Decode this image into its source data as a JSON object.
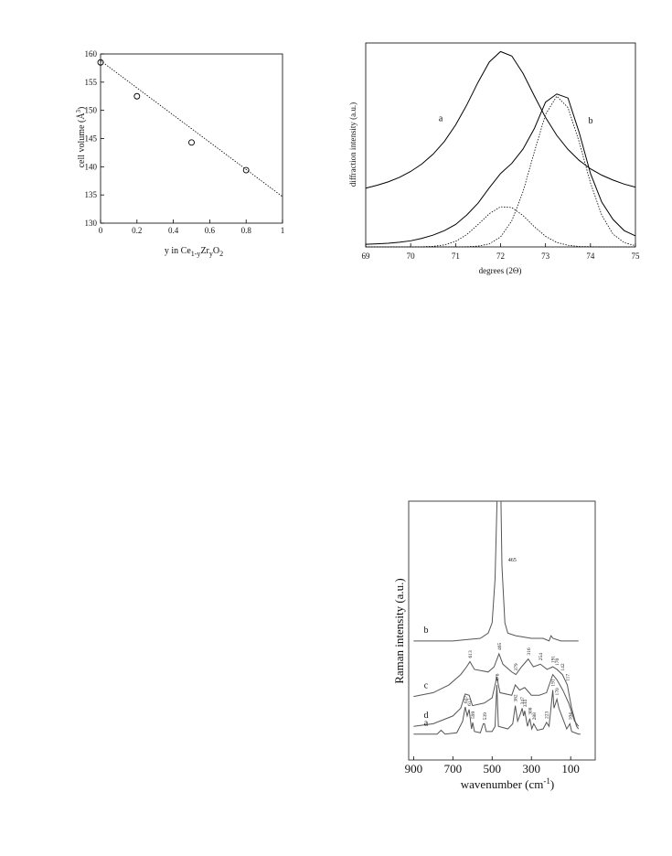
{
  "chart_data": [
    {
      "type": "scatter",
      "color": "#000000",
      "x_label": [
        "y in Ce",
        "1-y",
        "Zr",
        "y",
        "O",
        "2"
      ],
      "y_label": [
        "cell volume (Å",
        "3",
        ")"
      ],
      "x": [
        0,
        0.2,
        0.5,
        0.8
      ],
      "values": [
        158.5,
        152.5,
        144.3,
        139.4
      ],
      "fit": {
        "x": [
          0,
          1
        ],
        "values": [
          158.8,
          134.7
        ]
      },
      "xlim": [
        0,
        1
      ],
      "ylim": [
        130,
        160
      ],
      "xticks": [
        0,
        0.2,
        0.4,
        0.6,
        0.8,
        1
      ],
      "yticks": [
        130,
        135,
        140,
        145,
        150,
        155,
        160
      ]
    },
    {
      "type": "line",
      "color": "#000000",
      "x_label": "degrees (2Θ)",
      "y_label": "diffraction intensity (a.u.)",
      "x": [
        69,
        69.25,
        69.5,
        69.75,
        70,
        70.25,
        70.5,
        70.75,
        71,
        71.25,
        71.5,
        71.75,
        72,
        72.25,
        72.5,
        72.75,
        73,
        73.25,
        73.5,
        73.75,
        74,
        74.25,
        74.5,
        74.75,
        75
      ],
      "series": [
        {
          "name": "a",
          "values": [
            0.288,
            0.302,
            0.319,
            0.341,
            0.37,
            0.407,
            0.455,
            0.517,
            0.598,
            0.697,
            0.808,
            0.907,
            0.958,
            0.936,
            0.851,
            0.741,
            0.635,
            0.547,
            0.478,
            0.424,
            0.383,
            0.352,
            0.328,
            0.308,
            0.293
          ]
        },
        {
          "name": "b",
          "values": [
            0.013,
            0.015,
            0.018,
            0.023,
            0.03,
            0.042,
            0.058,
            0.08,
            0.11,
            0.157,
            0.215,
            0.29,
            0.36,
            0.41,
            0.48,
            0.58,
            0.71,
            0.75,
            0.73,
            0.56,
            0.36,
            0.22,
            0.135,
            0.08,
            0.054
          ]
        },
        {
          "dash": "dotted",
          "values": [
            0,
            0,
            0,
            0,
            0.0001,
            0.0007,
            0.003,
            0.01,
            0.027,
            0.061,
            0.11,
            0.163,
            0.197,
            0.193,
            0.154,
            0.099,
            0.052,
            0.022,
            0.008,
            0.002,
            0.001,
            0,
            0,
            0,
            0
          ]
        },
        {
          "dash": "dotted",
          "values": [
            0,
            0,
            0,
            0,
            0,
            0,
            0,
            0,
            0.0002,
            0.0008,
            0.0039,
            0.015,
            0.049,
            0.128,
            0.271,
            0.465,
            0.65,
            0.739,
            0.683,
            0.514,
            0.314,
            0.156,
            0.063,
            0.021,
            0.006
          ]
        }
      ],
      "xlim": [
        69,
        75
      ],
      "ylim": [
        0,
        1
      ],
      "xticks": [
        69,
        70,
        71,
        72,
        73,
        74,
        75
      ]
    },
    {
      "type": "line",
      "color": "#555555",
      "x_label": [
        "wavenumber (cm",
        "-1",
        ")"
      ],
      "y_label": "Raman intensity (a.u.)",
      "series": [
        {
          "name": "b",
          "x": [
            900,
            700,
            560,
            520,
            500,
            485,
            475,
            455,
            450,
            435,
            420,
            380,
            300,
            240,
            210,
            200,
            190,
            150,
            60
          ],
          "values": [
            0.46,
            0.46,
            0.47,
            0.49,
            0.53,
            0.7,
            1.0,
            1.0,
            0.75,
            0.53,
            0.49,
            0.48,
            0.47,
            0.47,
            0.46,
            0.48,
            0.47,
            0.46,
            0.46
          ],
          "peak_labels": [
            465
          ]
        },
        {
          "name": "c",
          "x": [
            900,
            800,
            720,
            660,
            630,
            613,
            590,
            520,
            490,
            465,
            445,
            400,
            379,
            350,
            316,
            290,
            254,
            220,
            191,
            170,
            142,
            117,
            95,
            70,
            60
          ],
          "values": [
            0.245,
            0.26,
            0.29,
            0.33,
            0.36,
            0.38,
            0.35,
            0.34,
            0.36,
            0.41,
            0.37,
            0.34,
            0.33,
            0.36,
            0.39,
            0.36,
            0.37,
            0.35,
            0.36,
            0.35,
            0.33,
            0.29,
            0.2,
            0.13,
            0.12
          ],
          "peak_labels": [
            613,
            465,
            379,
            316,
            254,
            191,
            170,
            142,
            117
          ]
        },
        {
          "name": "d",
          "x": [
            900,
            800,
            700,
            660,
            637,
            617,
            600,
            540,
            500,
            476,
            460,
            400,
            382,
            360,
            334,
            300,
            260,
            223,
            191,
            170,
            140,
            110,
            80,
            60
          ],
          "values": [
            0.13,
            0.14,
            0.17,
            0.2,
            0.255,
            0.25,
            0.21,
            0.22,
            0.24,
            0.32,
            0.26,
            0.25,
            0.29,
            0.27,
            0.28,
            0.25,
            0.25,
            0.26,
            0.33,
            0.31,
            0.27,
            0.22,
            0.15,
            0.13
          ]
        },
        {
          "name": "a",
          "x": [
            900,
            780,
            760,
            740,
            680,
            650,
            637,
            627,
            617,
            605,
            599,
            590,
            560,
            545,
            539,
            530,
            500,
            485,
            476,
            468,
            420,
            395,
            382,
            370,
            355,
            347,
            340,
            334,
            320,
            308,
            298,
            288,
            270,
            240,
            223,
            210,
            191,
            185,
            170,
            160,
            140,
            120,
            104,
            95,
            60,
            50
          ],
          "values": [
            0.1,
            0.1,
            0.115,
            0.1,
            0.105,
            0.15,
            0.205,
            0.17,
            0.195,
            0.12,
            0.145,
            0.11,
            0.105,
            0.14,
            0.14,
            0.11,
            0.11,
            0.13,
            0.29,
            0.13,
            0.12,
            0.14,
            0.21,
            0.15,
            0.18,
            0.2,
            0.17,
            0.19,
            0.13,
            0.16,
            0.12,
            0.14,
            0.115,
            0.12,
            0.145,
            0.13,
            0.27,
            0.2,
            0.235,
            0.2,
            0.16,
            0.12,
            0.14,
            0.11,
            0.1,
            0.1
          ],
          "peak_labels": [
            637,
            617,
            599,
            539,
            476,
            382,
            347,
            334,
            308,
            288,
            223,
            191,
            170,
            104
          ]
        }
      ],
      "xlim": [
        925,
        -25
      ],
      "ylim": [
        0,
        1
      ],
      "xticks": [
        900,
        700,
        500,
        300,
        100
      ]
    }
  ]
}
